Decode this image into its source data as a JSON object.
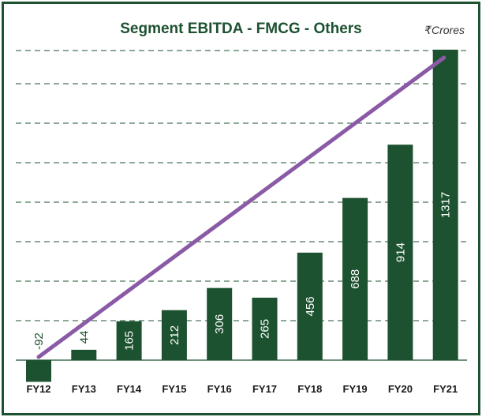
{
  "chart_data": {
    "type": "bar",
    "title": "Segment EBITDA - FMCG - Others",
    "unit": "₹Crores",
    "categories": [
      "FY12",
      "FY13",
      "FY14",
      "FY15",
      "FY16",
      "FY17",
      "FY18",
      "FY19",
      "FY20",
      "FY21"
    ],
    "values": [
      -92,
      44,
      165,
      212,
      306,
      265,
      456,
      688,
      914,
      1317
    ],
    "ylim": [
      -100,
      1400
    ],
    "grid": true,
    "data_labels": true,
    "trendline": true,
    "colors": {
      "bar": "#1d5230",
      "trend": "#8a5aa6",
      "grid": "#1d5230",
      "text": "#ffffff"
    }
  }
}
